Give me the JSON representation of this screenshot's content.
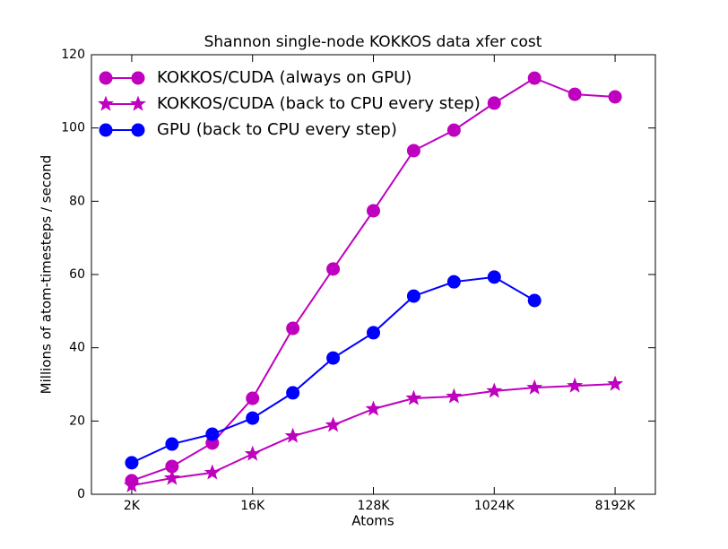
{
  "chart_data": {
    "type": "line",
    "title": "Shannon single-node KOKKOS data xfer cost",
    "xlabel": "Atoms",
    "ylabel": "Millions of atom-timesteps / second",
    "x": [
      2,
      4,
      8,
      16,
      32,
      64,
      128,
      256,
      512,
      1024,
      2048,
      4096,
      8192
    ],
    "xscale": "log2",
    "xlim": [
      1,
      16384
    ],
    "xticks": [
      {
        "value": 2,
        "label": "2K"
      },
      {
        "value": 16,
        "label": "16K"
      },
      {
        "value": 128,
        "label": "128K"
      },
      {
        "value": 1024,
        "label": "1024K"
      },
      {
        "value": 8192,
        "label": "8192K"
      }
    ],
    "ylim": [
      0,
      120
    ],
    "yticks": [
      0,
      20,
      40,
      60,
      80,
      100,
      120
    ],
    "legend": "upper left",
    "series": [
      {
        "name": "KOKKOS/CUDA (always on GPU)",
        "color": "#bf00bf",
        "marker": "circle",
        "values": [
          3.7,
          7.6,
          14,
          26.2,
          45.3,
          61.5,
          77.4,
          93.8,
          99.4,
          106.8,
          113.6,
          109.2,
          108.5
        ]
      },
      {
        "name": "KOKKOS/CUDA (back to CPU every step)",
        "color": "#bf00bf",
        "marker": "star",
        "values": [
          2.4,
          4.4,
          5.9,
          11,
          15.9,
          18.9,
          23.3,
          26.2,
          26.7,
          28.2,
          29.1,
          29.6,
          30.1
        ]
      },
      {
        "name": "GPU (back to CPU every step)",
        "color": "#0000ff",
        "marker": "circle",
        "values": [
          8.6,
          13.7,
          16.4,
          20.8,
          27.7,
          37.2,
          44.1,
          54.1,
          58,
          59.3,
          52.9,
          null,
          null
        ]
      }
    ]
  }
}
